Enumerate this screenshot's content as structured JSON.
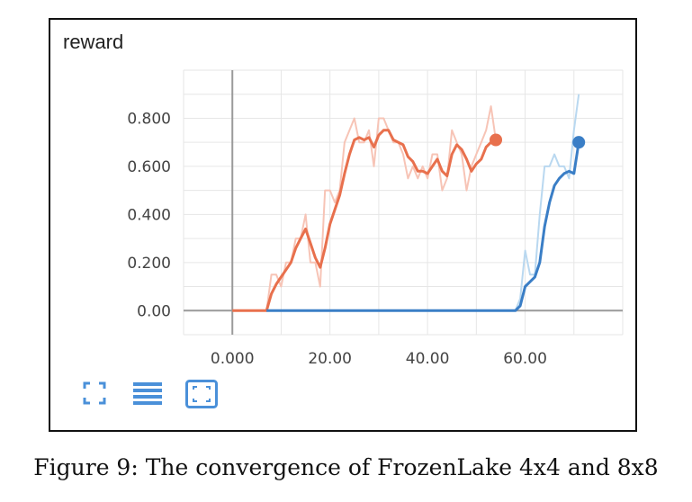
{
  "panel": {
    "title": "reward"
  },
  "caption": "Figure 9: The convergence of FrozenLake 4x4 and 8x8",
  "toolbar": {
    "icons": [
      "fullscreen-icon",
      "data-list-icon",
      "fit-domain-icon"
    ],
    "color": "#4a90d9"
  },
  "chart_data": {
    "type": "line",
    "title": "reward",
    "xlabel": "",
    "ylabel": "",
    "xlim": [
      -10,
      80
    ],
    "ylim": [
      -0.1,
      1.0
    ],
    "x_ticks": [
      0,
      20,
      40,
      60
    ],
    "x_tick_labels": [
      "0.000",
      "20.00",
      "40.00",
      "60.00"
    ],
    "y_ticks": [
      0,
      0.2,
      0.4,
      0.6,
      0.8
    ],
    "y_tick_labels": [
      "0.00",
      "0.200",
      "0.400",
      "0.600",
      "0.800"
    ],
    "grid": true,
    "legend": "none",
    "series": [
      {
        "color": "#e8704d",
        "raw_color": "#f7c4b6",
        "smoothed": {
          "x": [
            0,
            7,
            8,
            9,
            10,
            11,
            12,
            13,
            14,
            15,
            16,
            17,
            18,
            19,
            20,
            21,
            22,
            23,
            24,
            25,
            26,
            27,
            28,
            29,
            30,
            31,
            32,
            33,
            34,
            35,
            36,
            37,
            38,
            39,
            40,
            41,
            42,
            43,
            44,
            45,
            46,
            47,
            48,
            49,
            50,
            51,
            52,
            53,
            54
          ],
          "y": [
            0,
            0,
            0.07,
            0.11,
            0.14,
            0.17,
            0.2,
            0.26,
            0.3,
            0.34,
            0.28,
            0.22,
            0.18,
            0.26,
            0.36,
            0.42,
            0.48,
            0.57,
            0.65,
            0.71,
            0.72,
            0.71,
            0.72,
            0.68,
            0.73,
            0.75,
            0.75,
            0.71,
            0.7,
            0.69,
            0.64,
            0.62,
            0.58,
            0.58,
            0.57,
            0.6,
            0.63,
            0.58,
            0.56,
            0.65,
            0.69,
            0.67,
            0.63,
            0.58,
            0.61,
            0.63,
            0.68,
            0.7,
            0.71
          ]
        },
        "raw": {
          "x": [
            7,
            8,
            9,
            10,
            11,
            12,
            13,
            14,
            15,
            16,
            17,
            18,
            19,
            20,
            21,
            22,
            23,
            24,
            25,
            26,
            27,
            28,
            29,
            30,
            31,
            32,
            33,
            34,
            35,
            36,
            37,
            38,
            39,
            40,
            41,
            42,
            43,
            44,
            45,
            46,
            47,
            48,
            49,
            50,
            51,
            52,
            53,
            54
          ],
          "y": [
            0,
            0.15,
            0.15,
            0.1,
            0.2,
            0.2,
            0.3,
            0.3,
            0.4,
            0.2,
            0.2,
            0.1,
            0.5,
            0.5,
            0.45,
            0.5,
            0.7,
            0.75,
            0.8,
            0.7,
            0.7,
            0.75,
            0.6,
            0.8,
            0.8,
            0.75,
            0.7,
            0.7,
            0.65,
            0.55,
            0.6,
            0.55,
            0.6,
            0.55,
            0.65,
            0.65,
            0.5,
            0.55,
            0.75,
            0.7,
            0.65,
            0.5,
            0.6,
            0.65,
            0.7,
            0.75,
            0.85,
            0.71
          ]
        }
      },
      {
        "color": "#3a7ec6",
        "raw_color": "#b9d8f0",
        "smoothed": {
          "x": [
            7,
            58,
            59,
            60,
            61,
            62,
            63,
            64,
            65,
            66,
            67,
            68,
            69,
            70,
            71
          ],
          "y": [
            0,
            0,
            0.02,
            0.1,
            0.12,
            0.14,
            0.2,
            0.35,
            0.45,
            0.52,
            0.55,
            0.57,
            0.58,
            0.57,
            0.7
          ]
        },
        "raw": {
          "x": [
            58,
            59,
            60,
            61,
            62,
            63,
            64,
            65,
            66,
            67,
            68,
            69,
            70,
            71
          ],
          "y": [
            0,
            0.05,
            0.25,
            0.15,
            0.15,
            0.4,
            0.6,
            0.6,
            0.65,
            0.6,
            0.6,
            0.55,
            0.75,
            0.9
          ]
        }
      }
    ]
  }
}
